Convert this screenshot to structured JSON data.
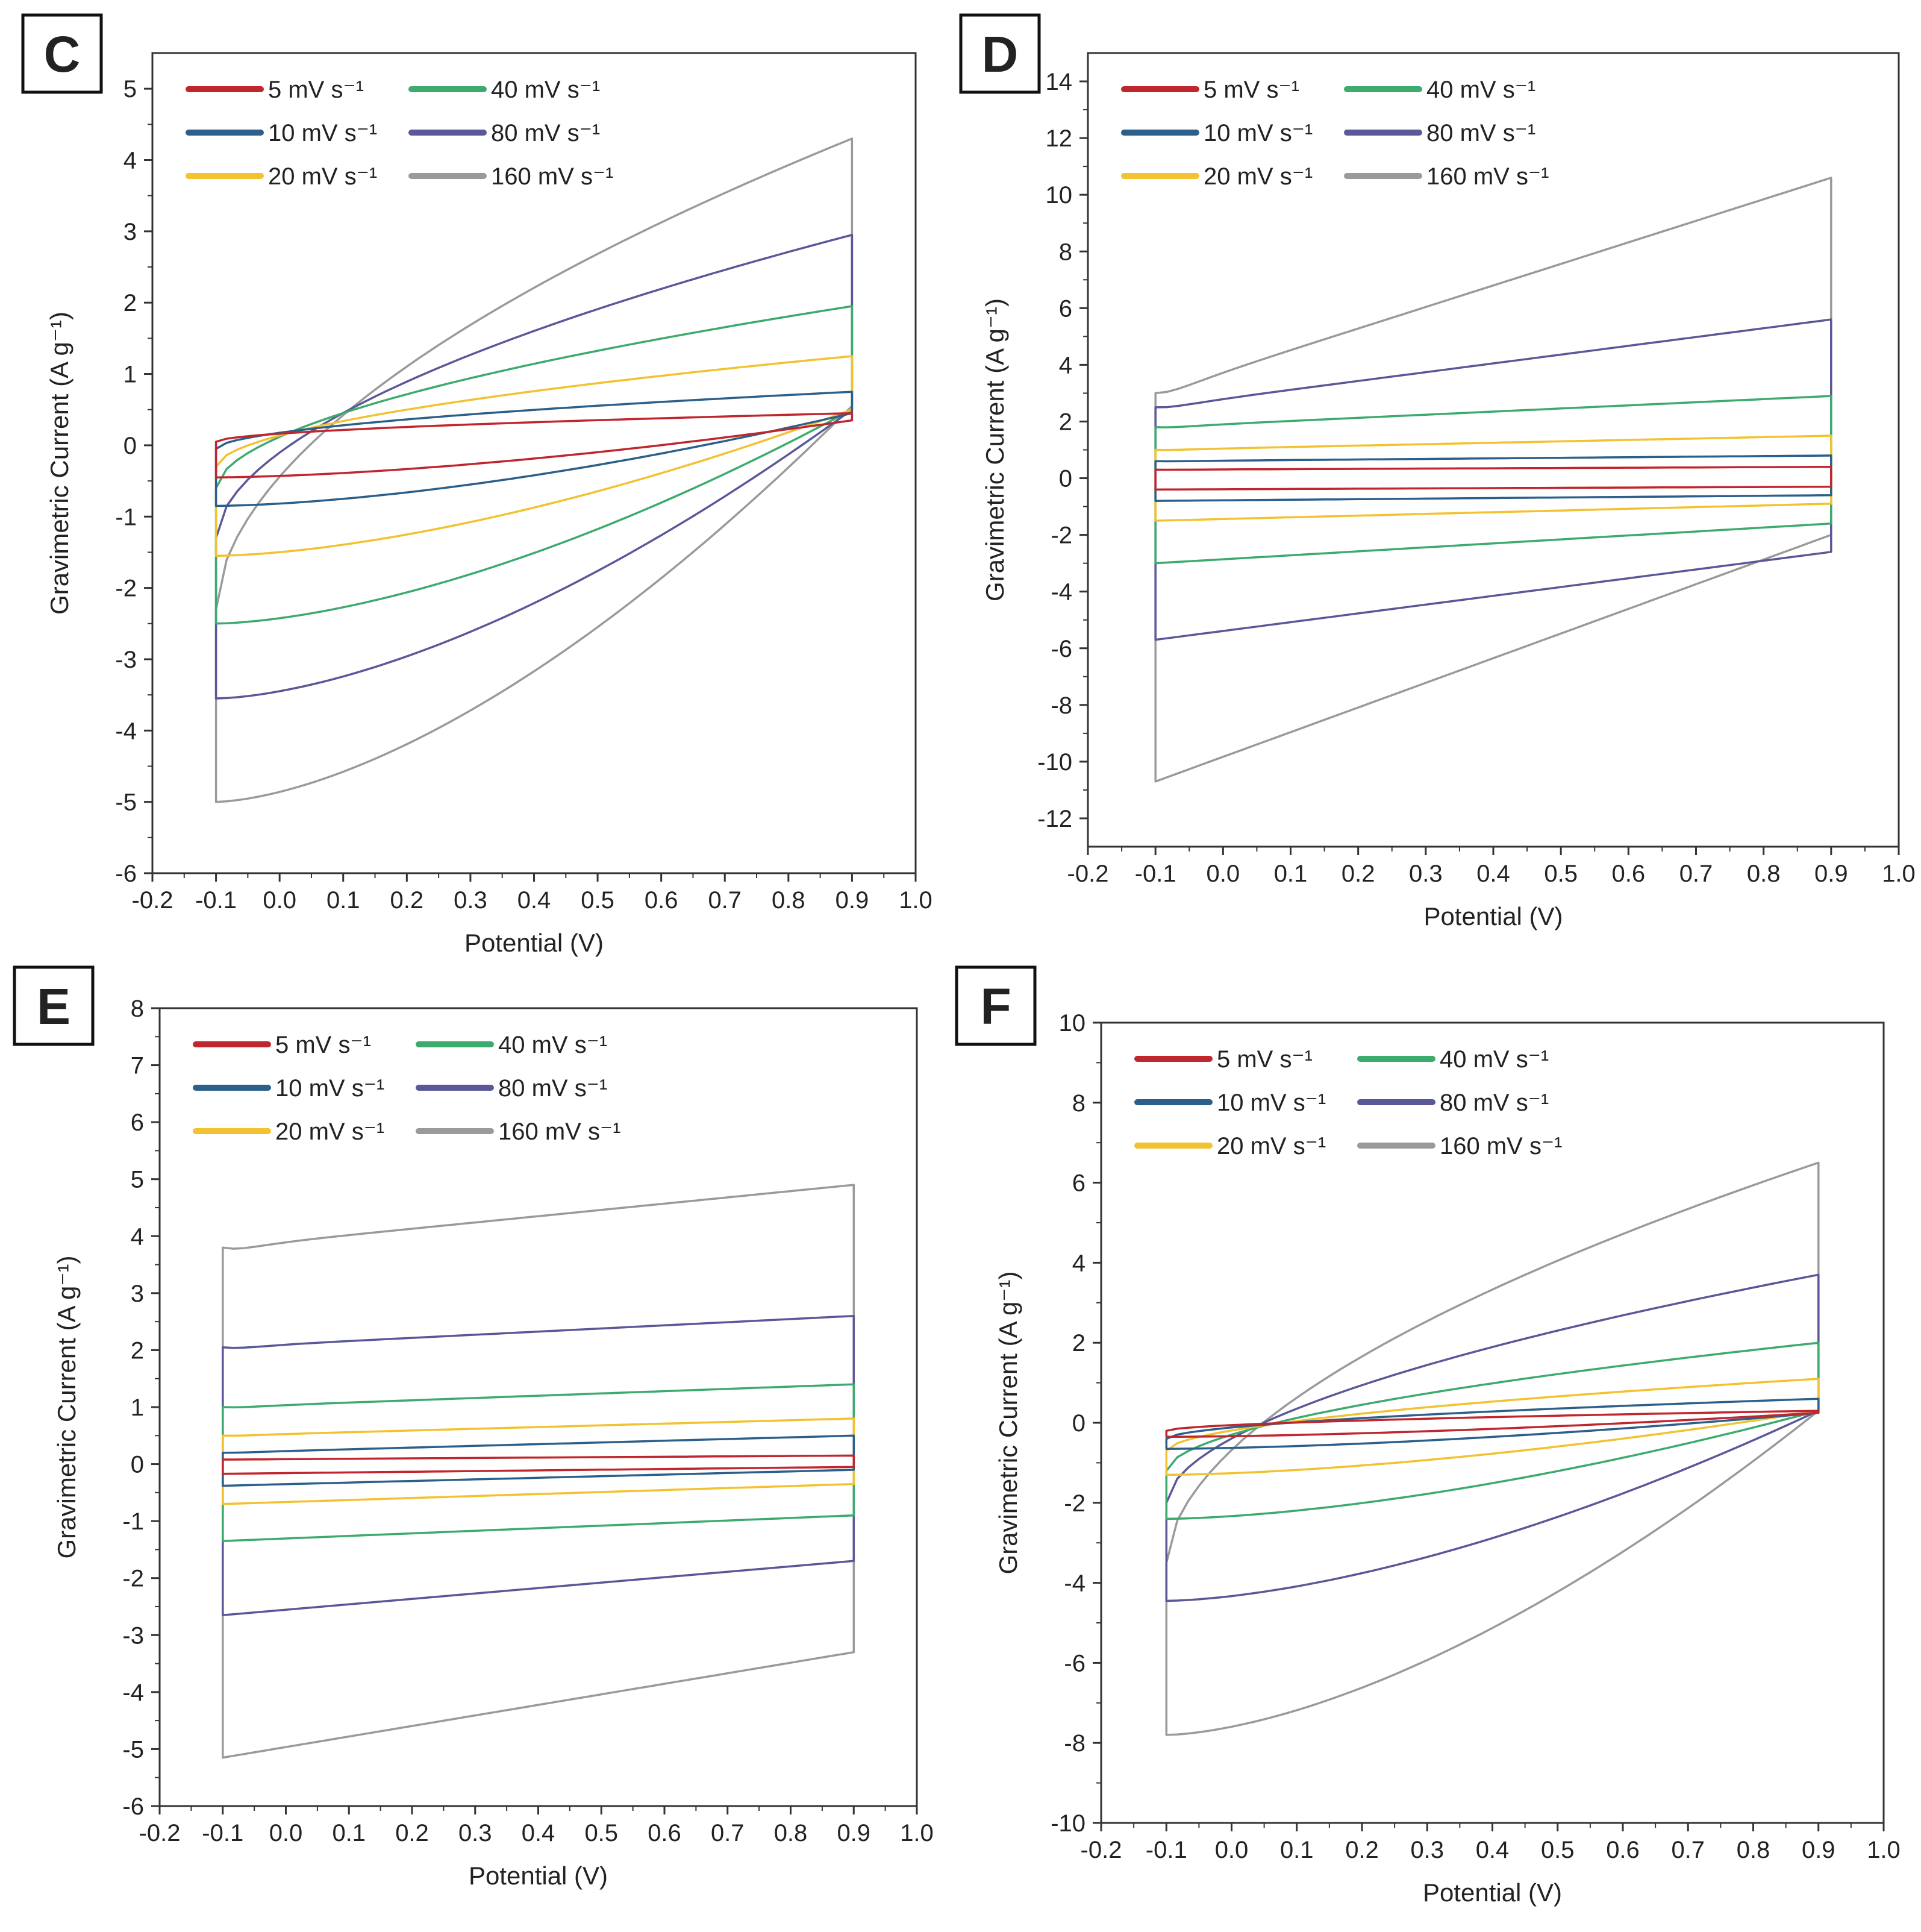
{
  "figure": {
    "series_colors": {
      "5 mV s-1": "#c0262d",
      "10 mV s-1": "#2c5f8a",
      "20 mV s-1": "#f2c230",
      "40 mV s-1": "#3daa6e",
      "80 mV s-1": "#5a5898",
      "160 mV s-1": "#9a9a9a"
    }
  },
  "chart_data": [
    {
      "panel": "C",
      "type": "line",
      "subtype": "cyclic-voltammogram",
      "xlabel": "Potential (V)",
      "ylabel": "Gravimetric Current (A g⁻¹)",
      "xlim": [
        -0.2,
        1.0
      ],
      "ylim": [
        -6,
        5.5
      ],
      "xticks": [
        -0.2,
        -0.1,
        0.0,
        0.1,
        0.2,
        0.3,
        0.4,
        0.5,
        0.6,
        0.7,
        0.8,
        0.9,
        1.0
      ],
      "xtick_labels": [
        "-0.2",
        "-0.1",
        "0.0",
        "0.1",
        "0.2",
        "0.3",
        "0.4",
        "0.5",
        "0.6",
        "0.7",
        "0.8",
        "0.9",
        "1.0"
      ],
      "yticks": [
        -6,
        -5,
        -4,
        -3,
        -2,
        -1,
        0,
        1,
        2,
        3,
        4,
        5
      ],
      "ytick_labels": [
        "-6",
        "-5",
        "-4",
        "-3",
        "-2",
        "-1",
        "0",
        "1",
        "2",
        "3",
        "4",
        "5"
      ],
      "legend": "top-left",
      "shape": "resistive",
      "series": [
        {
          "name": "5 mV s⁻¹",
          "top_start": 0.05,
          "top_end": 0.45,
          "bottom_start": -0.45,
          "bottom_end": 0.35
        },
        {
          "name": "10 mV s⁻¹",
          "top_start": -0.05,
          "top_end": 0.75,
          "bottom_start": -0.85,
          "bottom_end": 0.45
        },
        {
          "name": "20 mV s⁻¹",
          "top_start": -0.3,
          "top_end": 1.25,
          "bottom_start": -1.55,
          "bottom_end": 0.5
        },
        {
          "name": "40 mV s⁻¹",
          "top_start": -0.6,
          "top_end": 1.95,
          "bottom_start": -2.5,
          "bottom_end": 0.5
        },
        {
          "name": "80 mV s⁻¹",
          "top_start": -1.3,
          "top_end": 2.95,
          "bottom_start": -3.55,
          "bottom_end": 0.5
        },
        {
          "name": "160 mV s⁻¹",
          "top_start": -2.3,
          "top_end": 4.3,
          "bottom_start": -5.0,
          "bottom_end": 0.55
        }
      ]
    },
    {
      "panel": "D",
      "type": "line",
      "subtype": "cyclic-voltammogram",
      "xlabel": "Potential (V)",
      "ylabel": "Gravimetric Current (A g⁻¹)",
      "xlim": [
        -0.2,
        1.0
      ],
      "ylim": [
        -13,
        15
      ],
      "xticks": [
        -0.2,
        -0.1,
        0.0,
        0.1,
        0.2,
        0.3,
        0.4,
        0.5,
        0.6,
        0.7,
        0.8,
        0.9,
        1.0
      ],
      "xtick_labels": [
        "-0.2",
        "-0.1",
        "0.0",
        "0.1",
        "0.2",
        "0.3",
        "0.4",
        "0.5",
        "0.6",
        "0.7",
        "0.8",
        "0.9",
        "1.0"
      ],
      "yticks": [
        -12,
        -10,
        -8,
        -6,
        -4,
        -2,
        0,
        2,
        4,
        6,
        8,
        10,
        12,
        14
      ],
      "ytick_labels": [
        "-12",
        "-10",
        "-8",
        "-6",
        "-4",
        "-2",
        "0",
        "2",
        "4",
        "6",
        "8",
        "10",
        "12",
        "14"
      ],
      "legend": "top-left",
      "shape": "rectangular",
      "series": [
        {
          "name": "5 mV s⁻¹",
          "top_start": 0.3,
          "top_end": 0.4,
          "bottom_start": -0.4,
          "bottom_end": -0.3
        },
        {
          "name": "10 mV s⁻¹",
          "top_start": 0.6,
          "top_end": 0.8,
          "bottom_start": -0.8,
          "bottom_end": -0.6
        },
        {
          "name": "20 mV s⁻¹",
          "top_start": 1.0,
          "top_end": 1.5,
          "bottom_start": -1.5,
          "bottom_end": -0.9
        },
        {
          "name": "40 mV s⁻¹",
          "top_start": 1.8,
          "top_end": 2.9,
          "bottom_start": -3.0,
          "bottom_end": -1.6
        },
        {
          "name": "80 mV s⁻¹",
          "top_start": 2.5,
          "top_end": 5.6,
          "bottom_start": -5.7,
          "bottom_end": -2.6
        },
        {
          "name": "160 mV s⁻¹",
          "top_start": 3.0,
          "top_end": 10.6,
          "bottom_start": -10.7,
          "bottom_end": -2.0
        }
      ]
    },
    {
      "panel": "E",
      "type": "line",
      "subtype": "cyclic-voltammogram",
      "xlabel": "Potential (V)",
      "ylabel": "Gravimetric Current (A g⁻¹)",
      "xlim": [
        -0.2,
        1.0
      ],
      "ylim": [
        -6,
        8
      ],
      "xticks": [
        -0.2,
        -0.1,
        0.0,
        0.1,
        0.2,
        0.3,
        0.4,
        0.5,
        0.6,
        0.7,
        0.8,
        0.9,
        1.0
      ],
      "xtick_labels": [
        "-0.2",
        "-0.1",
        "0.0",
        "0.1",
        "0.2",
        "0.3",
        "0.4",
        "0.5",
        "0.6",
        "0.7",
        "0.8",
        "0.9",
        "1.0"
      ],
      "yticks": [
        -6,
        -5,
        -4,
        -3,
        -2,
        -1,
        0,
        1,
        2,
        3,
        4,
        5,
        6,
        7,
        8
      ],
      "ytick_labels": [
        "-6",
        "-5",
        "-4",
        "-3",
        "-2",
        "-1",
        "0",
        "1",
        "2",
        "3",
        "4",
        "5",
        "6",
        "7",
        "8"
      ],
      "legend": "top-left",
      "shape": "rectangular",
      "series": [
        {
          "name": "5 mV s⁻¹",
          "top_start": 0.08,
          "top_end": 0.15,
          "bottom_start": -0.17,
          "bottom_end": -0.05
        },
        {
          "name": "10 mV s⁻¹",
          "top_start": 0.2,
          "top_end": 0.5,
          "bottom_start": -0.38,
          "bottom_end": -0.1
        },
        {
          "name": "20 mV s⁻¹",
          "top_start": 0.5,
          "top_end": 0.8,
          "bottom_start": -0.7,
          "bottom_end": -0.35
        },
        {
          "name": "40 mV s⁻¹",
          "top_start": 1.0,
          "top_end": 1.4,
          "bottom_start": -1.35,
          "bottom_end": -0.9
        },
        {
          "name": "80 mV s⁻¹",
          "top_start": 2.05,
          "top_end": 2.6,
          "bottom_start": -2.65,
          "bottom_end": -1.7
        },
        {
          "name": "160 mV s⁻¹",
          "top_start": 3.8,
          "top_end": 4.9,
          "bottom_start": -5.15,
          "bottom_end": -3.3
        }
      ]
    },
    {
      "panel": "F",
      "type": "line",
      "subtype": "cyclic-voltammogram",
      "xlabel": "Potential (V)",
      "ylabel": "Gravimetric Current (A g⁻¹)",
      "xlim": [
        -0.2,
        1.0
      ],
      "ylim": [
        -10,
        10
      ],
      "xticks": [
        -0.2,
        -0.1,
        0.0,
        0.1,
        0.2,
        0.3,
        0.4,
        0.5,
        0.6,
        0.7,
        0.8,
        0.9,
        1.0
      ],
      "xtick_labels": [
        "-0.2",
        "-0.1",
        "0.0",
        "0.1",
        "0.2",
        "0.3",
        "0.4",
        "0.5",
        "0.6",
        "0.7",
        "0.8",
        "0.9",
        "1.0"
      ],
      "yticks": [
        -10,
        -8,
        -6,
        -4,
        -2,
        0,
        2,
        4,
        6,
        8,
        10
      ],
      "ytick_labels": [
        "-10",
        "-8",
        "-6",
        "-4",
        "-2",
        "0",
        "2",
        "4",
        "6",
        "8",
        "10"
      ],
      "legend": "top-left",
      "shape": "resistive",
      "series": [
        {
          "name": "5 mV s⁻¹",
          "top_start": -0.2,
          "top_end": 0.3,
          "bottom_start": -0.35,
          "bottom_end": 0.25
        },
        {
          "name": "10 mV s⁻¹",
          "top_start": -0.4,
          "top_end": 0.6,
          "bottom_start": -0.65,
          "bottom_end": 0.25
        },
        {
          "name": "20 mV s⁻¹",
          "top_start": -0.7,
          "top_end": 1.1,
          "bottom_start": -1.3,
          "bottom_end": 0.3
        },
        {
          "name": "40 mV s⁻¹",
          "top_start": -1.2,
          "top_end": 2.0,
          "bottom_start": -2.4,
          "bottom_end": 0.3
        },
        {
          "name": "80 mV s⁻¹",
          "top_start": -2.0,
          "top_end": 3.7,
          "bottom_start": -4.45,
          "bottom_end": 0.3
        },
        {
          "name": "160 mV s⁻¹",
          "top_start": -3.5,
          "top_end": 6.5,
          "bottom_start": -7.8,
          "bottom_end": 0.3
        }
      ]
    }
  ]
}
